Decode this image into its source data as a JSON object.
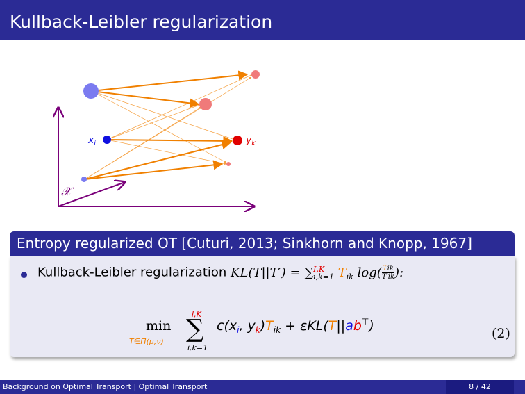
{
  "header": {
    "title": "Kullback-Leibler regularization"
  },
  "figure": {
    "source_label": "x",
    "source_sub": "i",
    "target_label": "y",
    "target_sub": "k",
    "space_label": "𝒳",
    "colors": {
      "source": "#7b7bf0",
      "target": "#f07a7a",
      "highlight_source": "#1010e0",
      "highlight_target": "#e00000",
      "arrow": "#f08000",
      "axis": "#7a007a"
    }
  },
  "block": {
    "title": "Entropy regularized OT [Cuturi, 2013; Sinkhorn and Knopp, 1967]",
    "bullet_prefix": "Kullback-Leibler regularization",
    "kl_lhs": "KL(T||T′) = ",
    "sum_sup": "I,K",
    "sum_sub": "i,k=1",
    "bullet_rhs": "T",
    "bullet_sub": "ik",
    "bullet_log": " log(",
    "frac_num": "T",
    "frac_num_sub": "ik",
    "frac_den": "T′",
    "frac_den_sub": "ik",
    "bullet_end": "):",
    "min_label": "min",
    "min_sub": "T∈Π(μ,ν)",
    "big_sum_sup": "I,K",
    "big_sum_sub": "i,k=1",
    "cost": "c(x",
    "cost_sub_i": "i",
    "cost_sep": ", y",
    "cost_sub_k": "k",
    "cost_close": ")",
    "t_term": "T",
    "t_term_sub": "ik",
    "reg": " + εKL(",
    "reg_T": "T",
    "reg_mid": "||",
    "reg_a": "a",
    "reg_b": "b",
    "reg_sup": "⊤",
    "reg_close": ")",
    "eq_number": "(2)"
  },
  "footer": {
    "left": "Background on Optimal Transport   |   Optimal Transport",
    "page": "8 / 42"
  }
}
